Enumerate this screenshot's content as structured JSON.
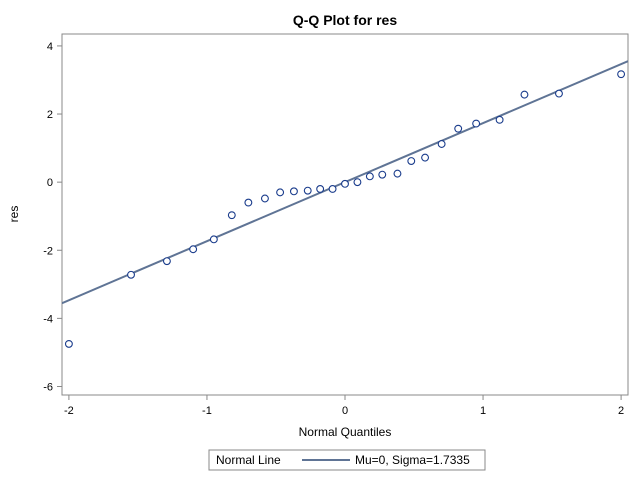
{
  "chart_data": {
    "type": "scatter",
    "title": "Q-Q Plot for res",
    "xlabel": "Normal Quantiles",
    "ylabel": "res",
    "xlim": [
      -2.05,
      2.05
    ],
    "ylim": [
      -6.25,
      4.35
    ],
    "xticks": [
      -2,
      -1,
      0,
      1,
      2
    ],
    "yticks": [
      -6,
      -4,
      -2,
      0,
      2,
      4
    ],
    "grid": false,
    "legend": {
      "placement": "bottom-center",
      "header": "Normal Line",
      "entries": [
        "Mu=0, Sigma=1.7335"
      ]
    },
    "reference_line": {
      "mu": 0,
      "sigma": 1.7335
    },
    "points": [
      {
        "x": -2.0,
        "y": -4.75
      },
      {
        "x": -1.55,
        "y": -2.72
      },
      {
        "x": -1.29,
        "y": -2.32
      },
      {
        "x": -1.1,
        "y": -1.97
      },
      {
        "x": -0.95,
        "y": -1.68
      },
      {
        "x": -0.82,
        "y": -0.97
      },
      {
        "x": -0.7,
        "y": -0.6
      },
      {
        "x": -0.58,
        "y": -0.48
      },
      {
        "x": -0.47,
        "y": -0.3
      },
      {
        "x": -0.37,
        "y": -0.27
      },
      {
        "x": -0.27,
        "y": -0.25
      },
      {
        "x": -0.18,
        "y": -0.2
      },
      {
        "x": -0.09,
        "y": -0.2
      },
      {
        "x": 0.0,
        "y": -0.05
      },
      {
        "x": 0.09,
        "y": 0.0
      },
      {
        "x": 0.18,
        "y": 0.17
      },
      {
        "x": 0.27,
        "y": 0.22
      },
      {
        "x": 0.38,
        "y": 0.25
      },
      {
        "x": 0.48,
        "y": 0.62
      },
      {
        "x": 0.58,
        "y": 0.72
      },
      {
        "x": 0.7,
        "y": 1.12
      },
      {
        "x": 0.82,
        "y": 1.57
      },
      {
        "x": 0.95,
        "y": 1.72
      },
      {
        "x": 1.12,
        "y": 1.83
      },
      {
        "x": 1.3,
        "y": 2.57
      },
      {
        "x": 1.55,
        "y": 2.6
      },
      {
        "x": 2.0,
        "y": 3.17
      }
    ],
    "colors": {
      "line": "#5f7495",
      "marker": "#1a3c8c",
      "axis": "#888888"
    }
  }
}
